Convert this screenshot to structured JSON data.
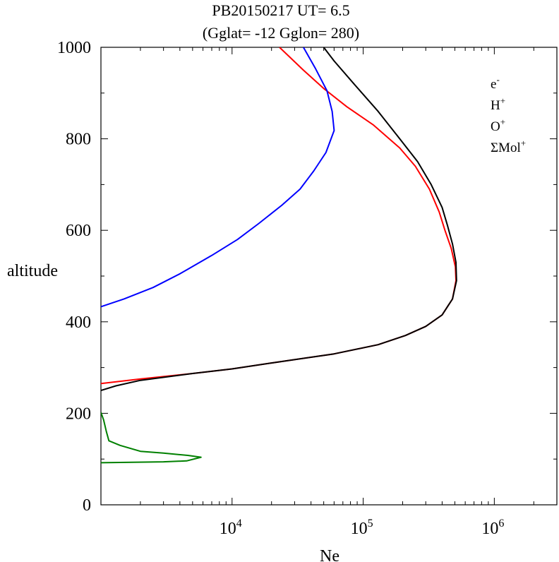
{
  "chart_data": {
    "type": "line",
    "title_line1": "PB20150217   UT=  6.5",
    "title_line2": "(Gglat= -12   Gglon=  280)",
    "xlabel": "Ne",
    "ylabel": "altitude",
    "x_scale": "log",
    "xlim": [
      1000,
      3000000
    ],
    "ylim": [
      0,
      1000
    ],
    "x_tick_labels": [
      {
        "value": 10000,
        "base": "10",
        "exp": "4"
      },
      {
        "value": 100000,
        "base": "10",
        "exp": "5"
      },
      {
        "value": 1000000,
        "base": "10",
        "exp": "6"
      }
    ],
    "y_ticks": [
      0,
      200,
      400,
      600,
      800,
      1000
    ],
    "legend_position": "top-right",
    "series": [
      {
        "name": "O+",
        "label_base": "O",
        "label_sup": "+",
        "color": "#ff0000",
        "points": [
          [
            1000,
            265
          ],
          [
            2000,
            275
          ],
          [
            5000,
            287
          ],
          [
            10000,
            297
          ],
          [
            20000,
            310
          ],
          [
            60000,
            330
          ],
          [
            130000,
            350
          ],
          [
            210000,
            370
          ],
          [
            300000,
            390
          ],
          [
            400000,
            415
          ],
          [
            480000,
            450
          ],
          [
            510000,
            490
          ],
          [
            505000,
            520
          ],
          [
            470000,
            560
          ],
          [
            420000,
            600
          ],
          [
            380000,
            640
          ],
          [
            320000,
            690
          ],
          [
            250000,
            740
          ],
          [
            190000,
            780
          ],
          [
            120000,
            830
          ],
          [
            75000,
            870
          ],
          [
            50000,
            910
          ],
          [
            35000,
            950
          ],
          [
            23000,
            1000
          ]
        ]
      },
      {
        "name": "H+",
        "label_base": "H",
        "label_sup": "+",
        "color": "#0000ff",
        "points": [
          [
            1000,
            433
          ],
          [
            1500,
            450
          ],
          [
            2500,
            475
          ],
          [
            4000,
            505
          ],
          [
            7000,
            545
          ],
          [
            11000,
            580
          ],
          [
            16000,
            615
          ],
          [
            24000,
            655
          ],
          [
            33000,
            690
          ],
          [
            42000,
            730
          ],
          [
            52000,
            770
          ],
          [
            60000,
            818
          ],
          [
            58000,
            860
          ],
          [
            53000,
            905
          ],
          [
            43000,
            955
          ],
          [
            35000,
            1000
          ]
        ]
      },
      {
        "name": "e-",
        "label_base": "e",
        "label_sup": "-",
        "color": "#000000",
        "points": [
          [
            1000,
            250
          ],
          [
            1300,
            260
          ],
          [
            2000,
            272
          ],
          [
            5000,
            287
          ],
          [
            10000,
            297
          ],
          [
            20000,
            310
          ],
          [
            60000,
            330
          ],
          [
            130000,
            350
          ],
          [
            210000,
            370
          ],
          [
            300000,
            390
          ],
          [
            400000,
            415
          ],
          [
            480000,
            450
          ],
          [
            515000,
            490
          ],
          [
            510000,
            530
          ],
          [
            480000,
            570
          ],
          [
            440000,
            610
          ],
          [
            400000,
            650
          ],
          [
            330000,
            700
          ],
          [
            260000,
            750
          ],
          [
            190000,
            800
          ],
          [
            130000,
            860
          ],
          [
            85000,
            920
          ],
          [
            60000,
            970
          ],
          [
            50000,
            1000
          ]
        ]
      },
      {
        "name": "ΣMol+",
        "label_base": "ΣMol",
        "label_sup": "+",
        "color": "#008000",
        "points": [
          [
            1000,
            92
          ],
          [
            3000,
            94
          ],
          [
            4500,
            96
          ],
          [
            5800,
            104
          ],
          [
            4600,
            108
          ],
          [
            3000,
            113
          ],
          [
            2000,
            117
          ],
          [
            1400,
            130
          ],
          [
            1150,
            140
          ],
          [
            1100,
            160
          ],
          [
            1050,
            185
          ],
          [
            1000,
            202
          ]
        ]
      }
    ]
  }
}
